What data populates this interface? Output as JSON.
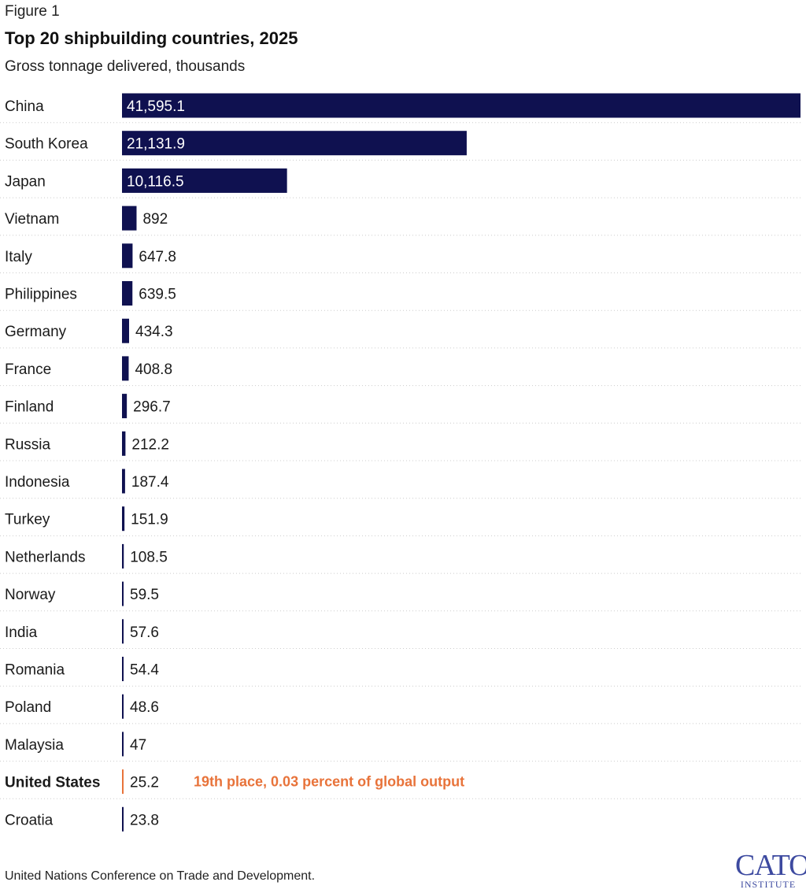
{
  "header": {
    "figure_label": "Figure 1",
    "title": "Top 20 shipbuilding countries, 2025",
    "subtitle": "Gross tonnage delivered, thousands"
  },
  "footer": {
    "source": "United Nations Conference on Trade and Development.",
    "logo_text": "CATO",
    "logo_subtext": "INSTITUTE"
  },
  "colors": {
    "bar": "#0f1150",
    "highlight": "#e8733a",
    "text": "#1a1a1a",
    "gridline": "#cccccc"
  },
  "chart_data": {
    "type": "bar",
    "orientation": "horizontal",
    "title": "Top 20 shipbuilding countries, 2025",
    "subtitle": "Gross tonnage delivered, thousands",
    "categories": [
      "China",
      "South Korea",
      "Japan",
      "Vietnam",
      "Italy",
      "Philippines",
      "Germany",
      "France",
      "Finland",
      "Russia",
      "Indonesia",
      "Turkey",
      "Netherlands",
      "Norway",
      "India",
      "Romania",
      "Poland",
      "Malaysia",
      "United States",
      "Croatia"
    ],
    "values": [
      41595.1,
      21131.9,
      10116.5,
      892,
      647.8,
      639.5,
      434.3,
      408.8,
      296.7,
      212.2,
      187.4,
      151.9,
      108.5,
      59.5,
      57.6,
      54.4,
      48.6,
      47,
      25.2,
      23.8
    ],
    "value_labels": [
      "41,595.1",
      "21,131.9",
      "10,116.5",
      "892",
      "647.8",
      "639.5",
      "434.3",
      "408.8",
      "296.7",
      "212.2",
      "187.4",
      "151.9",
      "108.5",
      "59.5",
      "57.6",
      "54.4",
      "48.6",
      "47",
      "25.2",
      "23.8"
    ],
    "highlight": {
      "category": "United States",
      "annotation": "19th place, 0.03 percent of global output"
    },
    "xlim": [
      0,
      41595.1
    ]
  }
}
